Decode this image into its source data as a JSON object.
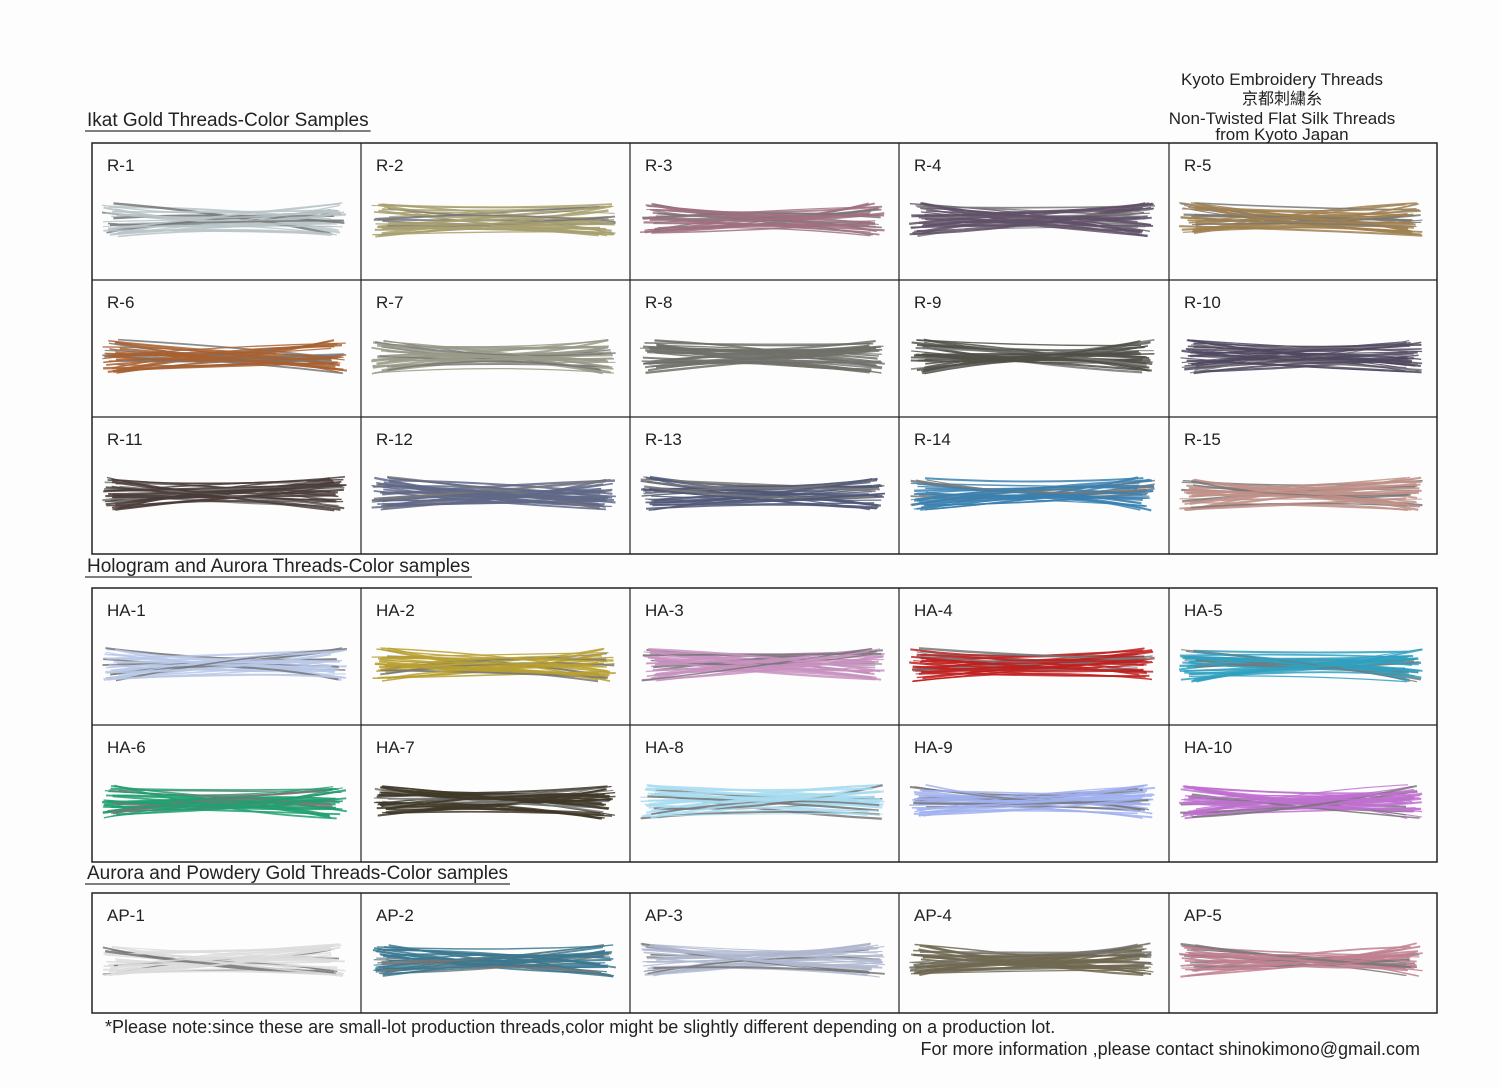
{
  "header": {
    "lines": [
      "Kyoto Embroidery Threads",
      "京都刺繍糸",
      "Non-Twisted Flat Silk Threads",
      "from Kyoto Japan"
    ]
  },
  "sections": [
    {
      "title": "Ikat Gold Threads-Color Samples",
      "samples": [
        "R-1",
        "R-2",
        "R-3",
        "R-4",
        "R-5",
        "R-6",
        "R-7",
        "R-8",
        "R-9",
        "R-10",
        "R-11",
        "R-12",
        "R-13",
        "R-14",
        "R-15"
      ]
    },
    {
      "title": "Hologram and Aurora Threads-Color samples",
      "samples": [
        "HA-1",
        "HA-2",
        "HA-3",
        "HA-4",
        "HA-5",
        "HA-6",
        "HA-7",
        "HA-8",
        "HA-9",
        "HA-10"
      ]
    },
    {
      "title": "Aurora and Powdery Gold Threads-Color samples",
      "samples": [
        "AP-1",
        "AP-2",
        "AP-3",
        "AP-4",
        "AP-5"
      ]
    }
  ],
  "footer": {
    "note": "*Please note:since these are small-lot production threads,color might be slightly different depending on a production lot.",
    "contact": "For more information ,please contact shinokimono@gmail.com"
  }
}
